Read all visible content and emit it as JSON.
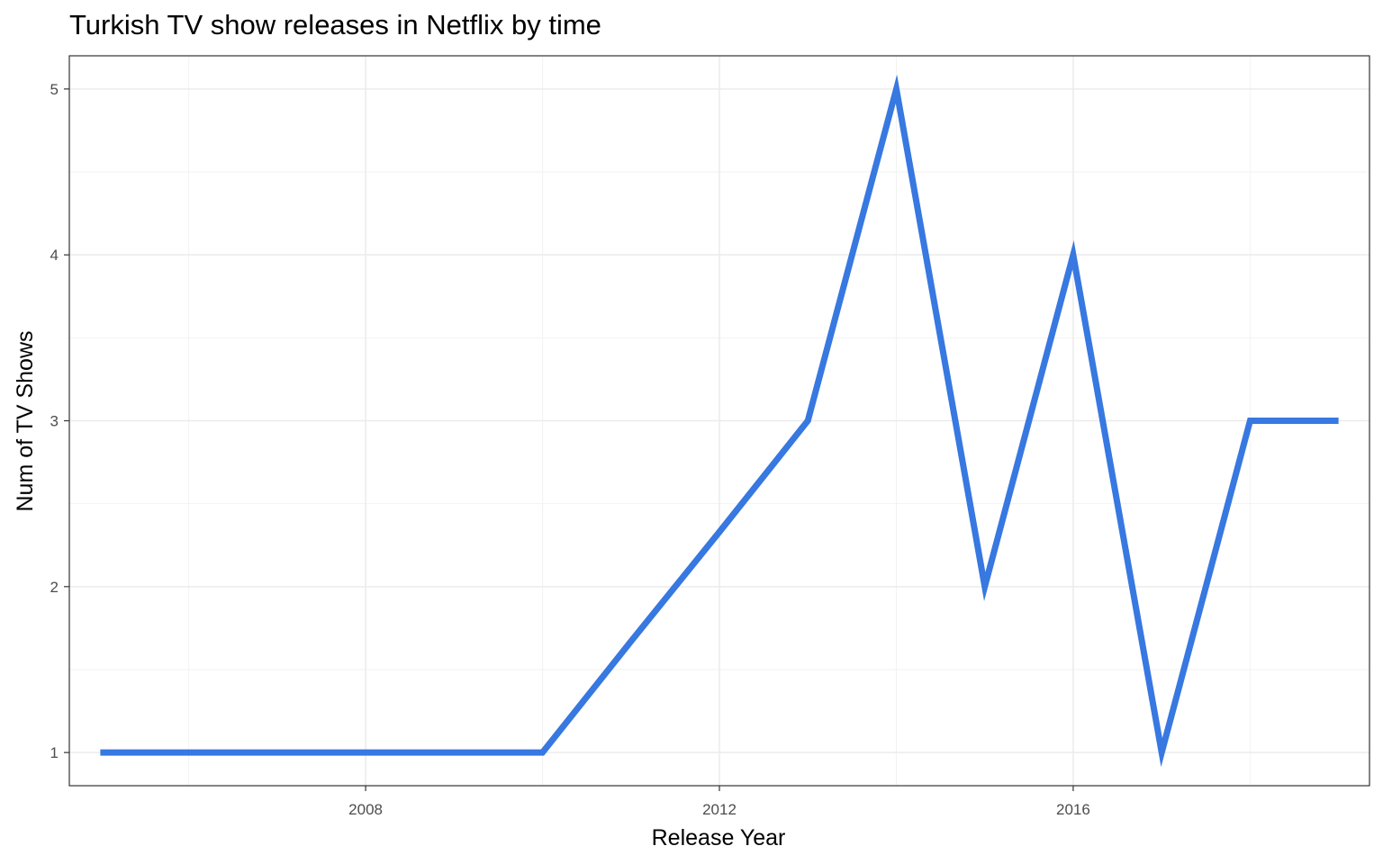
{
  "chart_data": {
    "type": "line",
    "title": "Turkish TV show releases in Netflix by time",
    "xlabel": "Release Year",
    "ylabel": "Num of TV Shows",
    "x": [
      2005,
      2006,
      2007,
      2008,
      2009,
      2010,
      2011,
      2012,
      2013,
      2014,
      2015,
      2016,
      2017,
      2018,
      2019
    ],
    "series": [
      {
        "values": [
          1,
          1,
          1,
          1,
          1,
          1,
          1.67,
          2.33,
          3,
          5,
          2,
          4,
          1,
          3,
          3
        ]
      }
    ],
    "xlim": [
      2004.65,
      2019.35
    ],
    "ylim": [
      0.8,
      5.2
    ],
    "x_ticks": [
      2008,
      2012,
      2016
    ],
    "y_ticks": [
      1,
      2,
      3,
      4,
      5
    ],
    "grid": true,
    "legend": "none",
    "line_color": "#3778E1"
  }
}
